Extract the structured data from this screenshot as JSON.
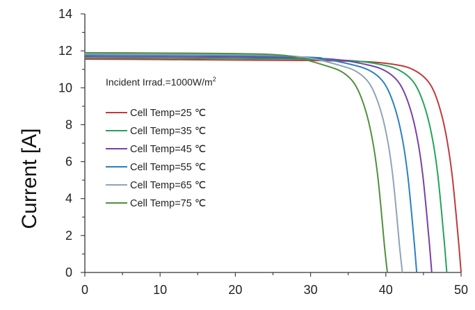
{
  "chart_data": {
    "type": "line",
    "title": "",
    "xlabel": "",
    "ylabel": "Current [A]",
    "xlim": [
      0,
      50
    ],
    "ylim": [
      0,
      14
    ],
    "x_ticks": [
      0,
      10,
      20,
      30,
      40,
      50
    ],
    "y_ticks": [
      0,
      2,
      4,
      6,
      8,
      10,
      12,
      14
    ],
    "grid": false,
    "legend_position": "left",
    "annotation": {
      "text": "Incident Irrad.=1000W/m",
      "superscript": "2"
    },
    "series": [
      {
        "name": "Cell Temp=25 ℃",
        "color": "#c0393b",
        "x": [
          0,
          10,
          20,
          30,
          38,
          42,
          44,
          45.5,
          46.5,
          47.5,
          48.2,
          48.8,
          49.3,
          49.7,
          50.0
        ],
        "y": [
          11.55,
          11.53,
          11.5,
          11.48,
          11.4,
          11.2,
          10.9,
          10.4,
          9.7,
          8.4,
          7.0,
          5.3,
          3.3,
          1.5,
          0
        ]
      },
      {
        "name": "Cell Temp=35 ℃",
        "color": "#22a35a",
        "x": [
          0,
          10,
          20,
          30,
          36,
          40,
          42,
          43.5,
          44.5,
          45.5,
          46.3,
          46.9,
          47.4,
          47.8,
          48.1
        ],
        "y": [
          11.62,
          11.6,
          11.58,
          11.55,
          11.45,
          11.2,
          10.9,
          10.4,
          9.7,
          8.5,
          7.0,
          5.3,
          3.3,
          1.5,
          0
        ]
      },
      {
        "name": "Cell Temp=45 ℃",
        "color": "#7a3fa6",
        "x": [
          0,
          10,
          20,
          30,
          34,
          38,
          40,
          41.5,
          42.5,
          43.5,
          44.3,
          44.9,
          45.4,
          45.8,
          46.1
        ],
        "y": [
          11.7,
          11.68,
          11.66,
          11.6,
          11.5,
          11.2,
          10.9,
          10.4,
          9.7,
          8.5,
          7.0,
          5.3,
          3.3,
          1.5,
          0
        ]
      },
      {
        "name": "Cell Temp=55 ℃",
        "color": "#2a7fc0",
        "x": [
          0,
          10,
          20,
          30,
          32,
          36,
          38,
          39.5,
          40.5,
          41.5,
          42.3,
          42.9,
          43.4,
          43.8,
          44.1
        ],
        "y": [
          11.78,
          11.76,
          11.73,
          11.65,
          11.55,
          11.2,
          10.9,
          10.4,
          9.7,
          8.5,
          7.0,
          5.3,
          3.3,
          1.5,
          0
        ]
      },
      {
        "name": "Cell Temp=65 ℃",
        "color": "#8fa3b8",
        "x": [
          0,
          10,
          20,
          26,
          30,
          34,
          36,
          37.5,
          38.5,
          39.5,
          40.3,
          40.9,
          41.4,
          41.8,
          42.2
        ],
        "y": [
          11.83,
          11.81,
          11.79,
          11.75,
          11.6,
          11.2,
          10.9,
          10.4,
          9.7,
          8.5,
          7.0,
          5.3,
          3.3,
          1.5,
          0
        ]
      },
      {
        "name": "Cell Temp=75 ℃",
        "color": "#4f8f3a",
        "x": [
          0,
          10,
          20,
          25,
          28,
          32,
          34,
          35.5,
          36.5,
          37.5,
          38.3,
          38.9,
          39.4,
          39.8,
          40.2
        ],
        "y": [
          11.9,
          11.88,
          11.85,
          11.8,
          11.65,
          11.2,
          10.9,
          10.4,
          9.7,
          8.5,
          7.0,
          5.3,
          3.3,
          1.5,
          0
        ]
      }
    ]
  }
}
